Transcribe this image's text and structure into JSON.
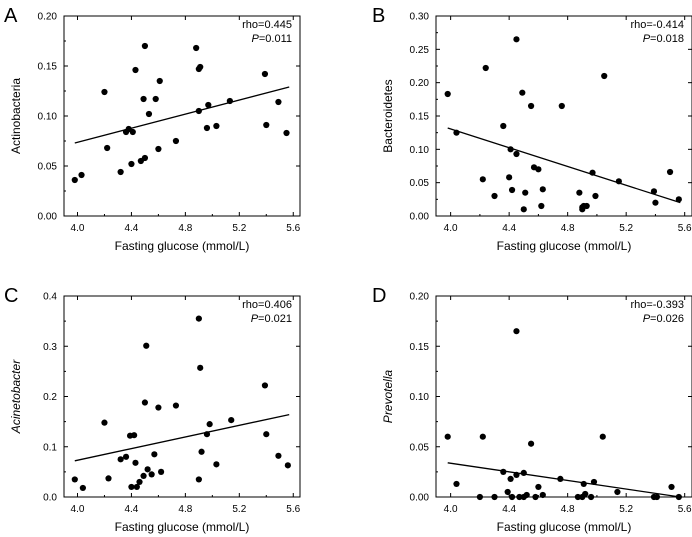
{
  "chart_data": [
    {
      "type": "scatter",
      "panel_label": "A",
      "xlabel": "Fasting glucose (mmol/L)",
      "ylabel": "Actinobacteria",
      "ylabel_italic": false,
      "xlim": [
        3.9,
        5.65
      ],
      "ylim": [
        0,
        0.2
      ],
      "xticks": [
        "4.0",
        "4.4",
        "4.8",
        "5.2",
        "5.6"
      ],
      "yticks": [
        "0.00",
        "0.05",
        "0.10",
        "0.15",
        "0.20"
      ],
      "rho_text": "rho=0.445",
      "p_label": "P",
      "p_value": "=0.011",
      "fit": {
        "x": [
          3.98,
          5.57
        ],
        "y": [
          0.073,
          0.129
        ]
      },
      "points": [
        [
          3.98,
          0.036
        ],
        [
          4.03,
          0.041
        ],
        [
          4.2,
          0.124
        ],
        [
          4.22,
          0.068
        ],
        [
          4.32,
          0.044
        ],
        [
          4.36,
          0.084
        ],
        [
          4.38,
          0.087
        ],
        [
          4.4,
          0.052
        ],
        [
          4.41,
          0.084
        ],
        [
          4.43,
          0.146
        ],
        [
          4.47,
          0.055
        ],
        [
          4.49,
          0.117
        ],
        [
          4.5,
          0.17
        ],
        [
          4.5,
          0.058
        ],
        [
          4.53,
          0.102
        ],
        [
          4.58,
          0.117
        ],
        [
          4.6,
          0.067
        ],
        [
          4.61,
          0.135
        ],
        [
          4.73,
          0.075
        ],
        [
          4.88,
          0.168
        ],
        [
          4.9,
          0.105
        ],
        [
          4.9,
          0.147
        ],
        [
          4.91,
          0.149
        ],
        [
          4.96,
          0.088
        ],
        [
          4.97,
          0.111
        ],
        [
          5.03,
          0.09
        ],
        [
          5.13,
          0.115
        ],
        [
          5.39,
          0.142
        ],
        [
          5.4,
          0.091
        ],
        [
          5.49,
          0.114
        ],
        [
          5.55,
          0.083
        ]
      ]
    },
    {
      "type": "scatter",
      "panel_label": "B",
      "xlabel": "Fasting glucose (mmol/L)",
      "ylabel": "Bacteroidetes",
      "ylabel_italic": false,
      "xlim": [
        3.9,
        5.65
      ],
      "ylim": [
        0,
        0.3
      ],
      "xticks": [
        "4.0",
        "4.4",
        "4.8",
        "5.2",
        "5.6"
      ],
      "yticks": [
        "0.00",
        "0.05",
        "0.10",
        "0.15",
        "0.20",
        "0.25",
        "0.30"
      ],
      "rho_text": "rho=-0.414",
      "p_label": "P",
      "p_value": "=0.018",
      "fit": {
        "x": [
          3.98,
          5.57
        ],
        "y": [
          0.132,
          0.02
        ]
      },
      "points": [
        [
          3.98,
          0.183
        ],
        [
          4.04,
          0.125
        ],
        [
          4.22,
          0.055
        ],
        [
          4.24,
          0.222
        ],
        [
          4.3,
          0.03
        ],
        [
          4.36,
          0.135
        ],
        [
          4.4,
          0.058
        ],
        [
          4.41,
          0.1
        ],
        [
          4.42,
          0.039
        ],
        [
          4.45,
          0.265
        ],
        [
          4.45,
          0.093
        ],
        [
          4.49,
          0.185
        ],
        [
          4.5,
          0.01
        ],
        [
          4.51,
          0.035
        ],
        [
          4.55,
          0.165
        ],
        [
          4.57,
          0.073
        ],
        [
          4.6,
          0.07
        ],
        [
          4.62,
          0.015
        ],
        [
          4.63,
          0.04
        ],
        [
          4.76,
          0.165
        ],
        [
          4.88,
          0.035
        ],
        [
          4.9,
          0.01
        ],
        [
          4.9,
          0.013
        ],
        [
          4.91,
          0.015
        ],
        [
          4.93,
          0.015
        ],
        [
          4.97,
          0.065
        ],
        [
          4.99,
          0.03
        ],
        [
          5.05,
          0.21
        ],
        [
          5.15,
          0.052
        ],
        [
          5.39,
          0.037
        ],
        [
          5.4,
          0.02
        ],
        [
          5.5,
          0.066
        ],
        [
          5.56,
          0.025
        ]
      ]
    },
    {
      "type": "scatter",
      "panel_label": "C",
      "xlabel": "Fasting glucose (mmol/L)",
      "ylabel": "Acinetobacter",
      "ylabel_italic": true,
      "xlim": [
        3.9,
        5.65
      ],
      "ylim": [
        0,
        0.4
      ],
      "xticks": [
        "4.0",
        "4.4",
        "4.8",
        "5.2",
        "5.6"
      ],
      "yticks": [
        "0.0",
        "0.1",
        "0.2",
        "0.3",
        "0.4"
      ],
      "rho_text": "rho=0.406",
      "p_label": "P",
      "p_value": "=0.021",
      "fit": {
        "x": [
          3.98,
          5.57
        ],
        "y": [
          0.072,
          0.164
        ]
      },
      "points": [
        [
          3.98,
          0.035
        ],
        [
          4.04,
          0.018
        ],
        [
          4.2,
          0.148
        ],
        [
          4.23,
          0.037
        ],
        [
          4.32,
          0.075
        ],
        [
          4.36,
          0.08
        ],
        [
          4.39,
          0.122
        ],
        [
          4.4,
          0.02
        ],
        [
          4.42,
          0.123
        ],
        [
          4.43,
          0.068
        ],
        [
          4.44,
          0.02
        ],
        [
          4.46,
          0.03
        ],
        [
          4.49,
          0.042
        ],
        [
          4.5,
          0.188
        ],
        [
          4.51,
          0.301
        ],
        [
          4.52,
          0.055
        ],
        [
          4.55,
          0.045
        ],
        [
          4.57,
          0.085
        ],
        [
          4.6,
          0.178
        ],
        [
          4.62,
          0.05
        ],
        [
          4.73,
          0.182
        ],
        [
          4.9,
          0.355
        ],
        [
          4.9,
          0.035
        ],
        [
          4.91,
          0.257
        ],
        [
          4.92,
          0.09
        ],
        [
          4.96,
          0.125
        ],
        [
          4.98,
          0.145
        ],
        [
          5.03,
          0.065
        ],
        [
          5.14,
          0.153
        ],
        [
          5.39,
          0.222
        ],
        [
          5.4,
          0.125
        ],
        [
          5.49,
          0.082
        ],
        [
          5.56,
          0.063
        ]
      ]
    },
    {
      "type": "scatter",
      "panel_label": "D",
      "xlabel": "Fasting glucose (mmol/L)",
      "ylabel": "Prevotella",
      "ylabel_italic": true,
      "xlim": [
        3.9,
        5.65
      ],
      "ylim": [
        0,
        0.2
      ],
      "xticks": [
        "4.0",
        "4.4",
        "4.8",
        "5.2",
        "5.6"
      ],
      "yticks": [
        "0.00",
        "0.05",
        "0.10",
        "0.15",
        "0.20"
      ],
      "rho_text": "rho=-0.393",
      "p_label": "P",
      "p_value": "=0.026",
      "fit": {
        "x": [
          3.98,
          5.57
        ],
        "y": [
          0.034,
          0.0
        ]
      },
      "points": [
        [
          3.98,
          0.06
        ],
        [
          4.04,
          0.013
        ],
        [
          4.2,
          0.0
        ],
        [
          4.22,
          0.06
        ],
        [
          4.3,
          0.0
        ],
        [
          4.36,
          0.025
        ],
        [
          4.39,
          0.005
        ],
        [
          4.41,
          0.018
        ],
        [
          4.42,
          0.0
        ],
        [
          4.45,
          0.165
        ],
        [
          4.45,
          0.022
        ],
        [
          4.47,
          0.0
        ],
        [
          4.5,
          0.0
        ],
        [
          4.5,
          0.024
        ],
        [
          4.52,
          0.002
        ],
        [
          4.55,
          0.053
        ],
        [
          4.58,
          0.0
        ],
        [
          4.6,
          0.01
        ],
        [
          4.63,
          0.002
        ],
        [
          4.75,
          0.018
        ],
        [
          4.87,
          0.0
        ],
        [
          4.9,
          0.0
        ],
        [
          4.91,
          0.013
        ],
        [
          4.92,
          0.003
        ],
        [
          4.96,
          0.0
        ],
        [
          4.98,
          0.015
        ],
        [
          5.04,
          0.06
        ],
        [
          5.14,
          0.005
        ],
        [
          5.39,
          0.0
        ],
        [
          5.41,
          0.0
        ],
        [
          5.51,
          0.01
        ],
        [
          5.56,
          0.0
        ]
      ]
    }
  ]
}
